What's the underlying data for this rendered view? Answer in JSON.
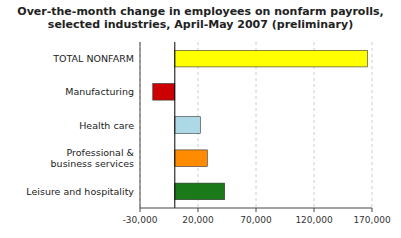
{
  "chart_data": {
    "type": "bar",
    "orientation": "horizontal",
    "title": "Over-the-month change in employees on nonfarm payrolls,\nselected industries, April-May 2007 (preliminary)",
    "categories": [
      "Leisure and hospitality",
      "Professional &\nbusiness services",
      "Health care",
      "Manufacturing",
      "TOTAL NONFARM"
    ],
    "values": [
      43000,
      28000,
      22000,
      -19000,
      166000
    ],
    "colors": [
      "#1a7a1a",
      "#ff8c00",
      "#add8e6",
      "#cc0000",
      "#ffff00"
    ],
    "xlim": [
      -30000,
      170000
    ],
    "xticks": [
      {
        "value": -30000,
        "label": "-30,000"
      },
      {
        "value": 20000,
        "label": "20,000"
      },
      {
        "value": 70000,
        "label": "70,000"
      },
      {
        "value": 120000,
        "label": "120,000"
      },
      {
        "value": 170000,
        "label": "170,000"
      }
    ],
    "grid": true
  }
}
